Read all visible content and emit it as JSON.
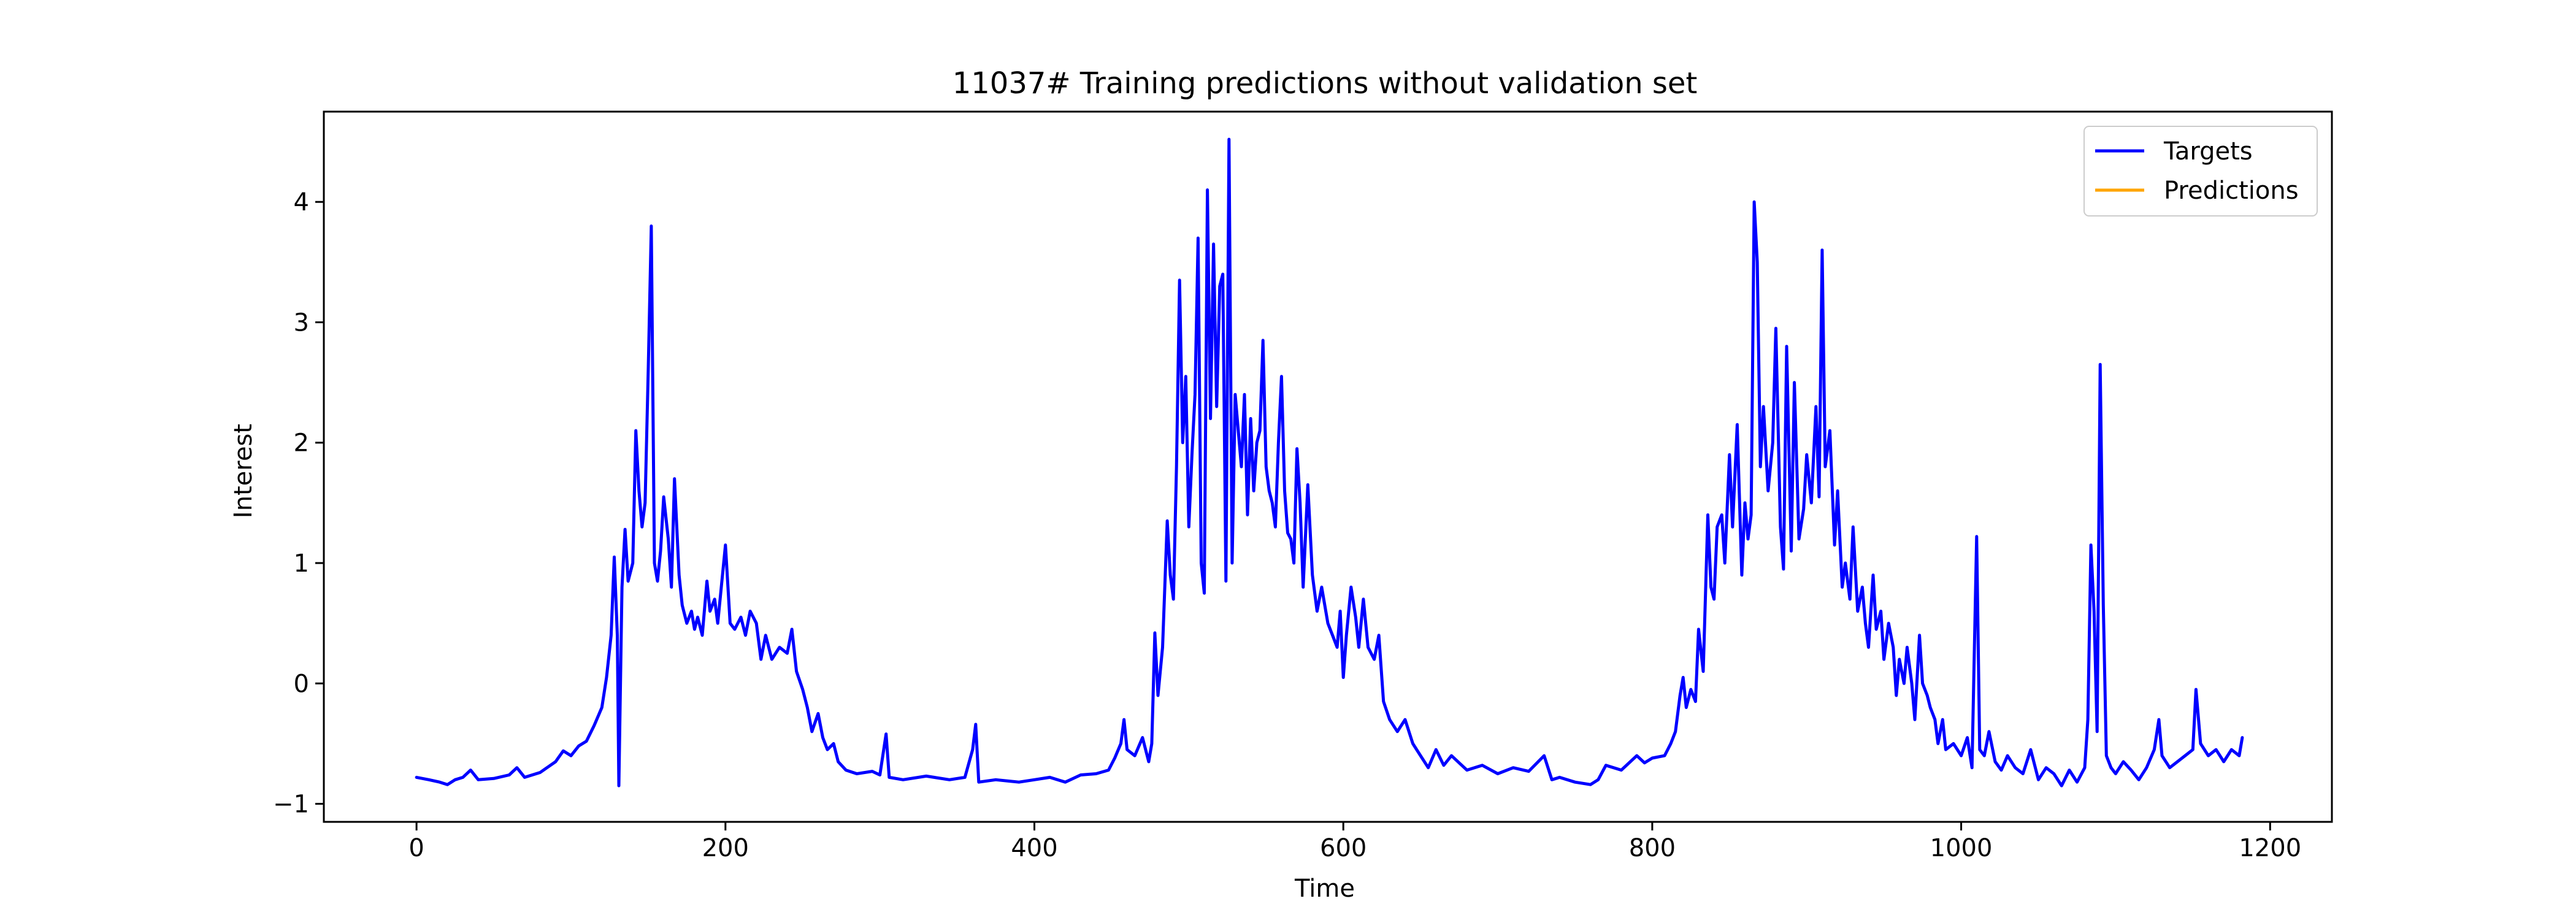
{
  "chart_data": {
    "type": "line",
    "title": "11037# Training predictions without validation set",
    "xlabel": "Time",
    "ylabel": "Interest",
    "xlim": [
      -60,
      1240
    ],
    "ylim": [
      -1.15,
      4.75
    ],
    "xticks": [
      0,
      200,
      400,
      600,
      800,
      1000,
      1200
    ],
    "yticks": [
      -1,
      0,
      1,
      2,
      3,
      4
    ],
    "grid": false,
    "legend_position": "top-right",
    "series": [
      {
        "name": "Targets",
        "color": "#0000ff",
        "points": [
          [
            0,
            -0.78
          ],
          [
            8,
            -0.8
          ],
          [
            15,
            -0.82
          ],
          [
            20,
            -0.84
          ],
          [
            25,
            -0.8
          ],
          [
            30,
            -0.78
          ],
          [
            35,
            -0.72
          ],
          [
            40,
            -0.8
          ],
          [
            50,
            -0.79
          ],
          [
            60,
            -0.76
          ],
          [
            65,
            -0.7
          ],
          [
            70,
            -0.78
          ],
          [
            80,
            -0.74
          ],
          [
            90,
            -0.65
          ],
          [
            95,
            -0.56
          ],
          [
            100,
            -0.6
          ],
          [
            105,
            -0.52
          ],
          [
            110,
            -0.48
          ],
          [
            115,
            -0.35
          ],
          [
            120,
            -0.2
          ],
          [
            123,
            0.05
          ],
          [
            126,
            0.4
          ],
          [
            128,
            1.05
          ],
          [
            130,
            0.4
          ],
          [
            131,
            -0.85
          ],
          [
            133,
            0.8
          ],
          [
            135,
            1.28
          ],
          [
            137,
            0.85
          ],
          [
            140,
            1.0
          ],
          [
            142,
            2.1
          ],
          [
            144,
            1.6
          ],
          [
            146,
            1.3
          ],
          [
            148,
            1.5
          ],
          [
            150,
            2.6
          ],
          [
            152,
            3.8
          ],
          [
            154,
            1.0
          ],
          [
            156,
            0.85
          ],
          [
            158,
            1.1
          ],
          [
            160,
            1.55
          ],
          [
            163,
            1.2
          ],
          [
            165,
            0.8
          ],
          [
            167,
            1.7
          ],
          [
            170,
            0.9
          ],
          [
            172,
            0.65
          ],
          [
            175,
            0.5
          ],
          [
            178,
            0.6
          ],
          [
            180,
            0.45
          ],
          [
            182,
            0.55
          ],
          [
            185,
            0.4
          ],
          [
            188,
            0.85
          ],
          [
            190,
            0.6
          ],
          [
            193,
            0.7
          ],
          [
            195,
            0.5
          ],
          [
            200,
            1.15
          ],
          [
            203,
            0.5
          ],
          [
            206,
            0.45
          ],
          [
            210,
            0.55
          ],
          [
            213,
            0.4
          ],
          [
            216,
            0.6
          ],
          [
            220,
            0.5
          ],
          [
            223,
            0.2
          ],
          [
            226,
            0.4
          ],
          [
            230,
            0.2
          ],
          [
            235,
            0.3
          ],
          [
            240,
            0.25
          ],
          [
            243,
            0.45
          ],
          [
            246,
            0.1
          ],
          [
            250,
            -0.05
          ],
          [
            253,
            -0.2
          ],
          [
            256,
            -0.4
          ],
          [
            260,
            -0.25
          ],
          [
            263,
            -0.45
          ],
          [
            266,
            -0.55
          ],
          [
            270,
            -0.5
          ],
          [
            273,
            -0.65
          ],
          [
            278,
            -0.72
          ],
          [
            285,
            -0.75
          ],
          [
            295,
            -0.73
          ],
          [
            300,
            -0.76
          ],
          [
            304,
            -0.42
          ],
          [
            306,
            -0.78
          ],
          [
            315,
            -0.8
          ],
          [
            330,
            -0.77
          ],
          [
            345,
            -0.8
          ],
          [
            355,
            -0.78
          ],
          [
            360,
            -0.55
          ],
          [
            362,
            -0.34
          ],
          [
            364,
            -0.82
          ],
          [
            375,
            -0.8
          ],
          [
            390,
            -0.82
          ],
          [
            400,
            -0.8
          ],
          [
            410,
            -0.78
          ],
          [
            420,
            -0.82
          ],
          [
            430,
            -0.76
          ],
          [
            440,
            -0.75
          ],
          [
            448,
            -0.72
          ],
          [
            452,
            -0.62
          ],
          [
            456,
            -0.5
          ],
          [
            458,
            -0.3
          ],
          [
            460,
            -0.55
          ],
          [
            465,
            -0.6
          ],
          [
            470,
            -0.45
          ],
          [
            474,
            -0.65
          ],
          [
            476,
            -0.5
          ],
          [
            478,
            0.42
          ],
          [
            480,
            -0.1
          ],
          [
            483,
            0.3
          ],
          [
            486,
            1.35
          ],
          [
            488,
            0.9
          ],
          [
            490,
            0.7
          ],
          [
            492,
            1.8
          ],
          [
            494,
            3.35
          ],
          [
            496,
            2.0
          ],
          [
            498,
            2.55
          ],
          [
            500,
            1.3
          ],
          [
            502,
            1.9
          ],
          [
            504,
            2.4
          ],
          [
            506,
            3.7
          ],
          [
            508,
            1.0
          ],
          [
            510,
            0.75
          ],
          [
            512,
            4.1
          ],
          [
            514,
            2.2
          ],
          [
            516,
            3.65
          ],
          [
            518,
            2.3
          ],
          [
            520,
            3.3
          ],
          [
            522,
            3.4
          ],
          [
            524,
            0.85
          ],
          [
            526,
            4.52
          ],
          [
            528,
            1.0
          ],
          [
            530,
            2.4
          ],
          [
            532,
            2.1
          ],
          [
            534,
            1.8
          ],
          [
            536,
            2.4
          ],
          [
            538,
            1.4
          ],
          [
            540,
            2.2
          ],
          [
            542,
            1.6
          ],
          [
            544,
            2.0
          ],
          [
            546,
            2.1
          ],
          [
            548,
            2.85
          ],
          [
            550,
            1.8
          ],
          [
            552,
            1.6
          ],
          [
            554,
            1.5
          ],
          [
            556,
            1.3
          ],
          [
            558,
            2.0
          ],
          [
            560,
            2.55
          ],
          [
            562,
            1.6
          ],
          [
            564,
            1.25
          ],
          [
            566,
            1.2
          ],
          [
            568,
            1.0
          ],
          [
            570,
            1.95
          ],
          [
            572,
            1.5
          ],
          [
            574,
            0.8
          ],
          [
            577,
            1.65
          ],
          [
            580,
            0.9
          ],
          [
            583,
            0.6
          ],
          [
            586,
            0.8
          ],
          [
            590,
            0.5
          ],
          [
            593,
            0.4
          ],
          [
            596,
            0.3
          ],
          [
            598,
            0.6
          ],
          [
            600,
            0.05
          ],
          [
            602,
            0.4
          ],
          [
            605,
            0.8
          ],
          [
            608,
            0.55
          ],
          [
            610,
            0.3
          ],
          [
            613,
            0.7
          ],
          [
            616,
            0.3
          ],
          [
            620,
            0.2
          ],
          [
            623,
            0.4
          ],
          [
            626,
            -0.15
          ],
          [
            630,
            -0.3
          ],
          [
            635,
            -0.4
          ],
          [
            640,
            -0.3
          ],
          [
            645,
            -0.5
          ],
          [
            650,
            -0.6
          ],
          [
            655,
            -0.7
          ],
          [
            660,
            -0.55
          ],
          [
            665,
            -0.68
          ],
          [
            670,
            -0.6
          ],
          [
            680,
            -0.72
          ],
          [
            690,
            -0.68
          ],
          [
            700,
            -0.75
          ],
          [
            710,
            -0.7
          ],
          [
            720,
            -0.73
          ],
          [
            730,
            -0.6
          ],
          [
            735,
            -0.8
          ],
          [
            740,
            -0.78
          ],
          [
            750,
            -0.82
          ],
          [
            760,
            -0.84
          ],
          [
            765,
            -0.8
          ],
          [
            770,
            -0.68
          ],
          [
            780,
            -0.72
          ],
          [
            790,
            -0.6
          ],
          [
            795,
            -0.66
          ],
          [
            800,
            -0.62
          ],
          [
            808,
            -0.6
          ],
          [
            812,
            -0.5
          ],
          [
            815,
            -0.4
          ],
          [
            818,
            -0.1
          ],
          [
            820,
            0.05
          ],
          [
            822,
            -0.2
          ],
          [
            825,
            -0.05
          ],
          [
            828,
            -0.15
          ],
          [
            830,
            0.45
          ],
          [
            833,
            0.1
          ],
          [
            836,
            1.4
          ],
          [
            838,
            0.8
          ],
          [
            840,
            0.7
          ],
          [
            842,
            1.3
          ],
          [
            845,
            1.4
          ],
          [
            847,
            1.0
          ],
          [
            850,
            1.9
          ],
          [
            852,
            1.3
          ],
          [
            855,
            2.15
          ],
          [
            858,
            0.9
          ],
          [
            860,
            1.5
          ],
          [
            862,
            1.2
          ],
          [
            864,
            1.4
          ],
          [
            866,
            4.0
          ],
          [
            868,
            3.5
          ],
          [
            870,
            1.8
          ],
          [
            872,
            2.3
          ],
          [
            875,
            1.6
          ],
          [
            878,
            2.0
          ],
          [
            880,
            2.95
          ],
          [
            883,
            1.3
          ],
          [
            885,
            0.95
          ],
          [
            887,
            2.8
          ],
          [
            890,
            1.1
          ],
          [
            892,
            2.5
          ],
          [
            895,
            1.2
          ],
          [
            898,
            1.45
          ],
          [
            900,
            1.9
          ],
          [
            903,
            1.5
          ],
          [
            906,
            2.3
          ],
          [
            908,
            1.55
          ],
          [
            910,
            3.6
          ],
          [
            912,
            1.8
          ],
          [
            915,
            2.1
          ],
          [
            918,
            1.15
          ],
          [
            920,
            1.6
          ],
          [
            923,
            0.8
          ],
          [
            925,
            1.0
          ],
          [
            928,
            0.7
          ],
          [
            930,
            1.3
          ],
          [
            933,
            0.6
          ],
          [
            936,
            0.8
          ],
          [
            938,
            0.5
          ],
          [
            940,
            0.3
          ],
          [
            943,
            0.9
          ],
          [
            945,
            0.45
          ],
          [
            948,
            0.6
          ],
          [
            950,
            0.2
          ],
          [
            953,
            0.5
          ],
          [
            956,
            0.3
          ],
          [
            958,
            -0.1
          ],
          [
            960,
            0.2
          ],
          [
            963,
            0.0
          ],
          [
            965,
            0.3
          ],
          [
            968,
            0.0
          ],
          [
            970,
            -0.3
          ],
          [
            973,
            0.4
          ],
          [
            975,
            0.0
          ],
          [
            978,
            -0.1
          ],
          [
            980,
            -0.2
          ],
          [
            983,
            -0.3
          ],
          [
            985,
            -0.5
          ],
          [
            988,
            -0.3
          ],
          [
            990,
            -0.55
          ],
          [
            995,
            -0.5
          ],
          [
            1000,
            -0.6
          ],
          [
            1004,
            -0.45
          ],
          [
            1007,
            -0.7
          ],
          [
            1010,
            1.22
          ],
          [
            1012,
            -0.55
          ],
          [
            1015,
            -0.6
          ],
          [
            1018,
            -0.4
          ],
          [
            1022,
            -0.65
          ],
          [
            1026,
            -0.72
          ],
          [
            1030,
            -0.6
          ],
          [
            1035,
            -0.7
          ],
          [
            1040,
            -0.75
          ],
          [
            1045,
            -0.55
          ],
          [
            1050,
            -0.8
          ],
          [
            1055,
            -0.7
          ],
          [
            1060,
            -0.75
          ],
          [
            1065,
            -0.85
          ],
          [
            1070,
            -0.72
          ],
          [
            1075,
            -0.82
          ],
          [
            1080,
            -0.7
          ],
          [
            1082,
            -0.3
          ],
          [
            1084,
            1.15
          ],
          [
            1086,
            0.6
          ],
          [
            1088,
            -0.4
          ],
          [
            1090,
            2.65
          ],
          [
            1092,
            0.65
          ],
          [
            1094,
            -0.6
          ],
          [
            1097,
            -0.7
          ],
          [
            1100,
            -0.75
          ],
          [
            1105,
            -0.65
          ],
          [
            1110,
            -0.72
          ],
          [
            1115,
            -0.8
          ],
          [
            1120,
            -0.7
          ],
          [
            1125,
            -0.55
          ],
          [
            1128,
            -0.3
          ],
          [
            1130,
            -0.6
          ],
          [
            1135,
            -0.7
          ],
          [
            1140,
            -0.65
          ],
          [
            1145,
            -0.6
          ],
          [
            1150,
            -0.55
          ],
          [
            1152,
            -0.05
          ],
          [
            1155,
            -0.5
          ],
          [
            1160,
            -0.6
          ],
          [
            1165,
            -0.55
          ],
          [
            1170,
            -0.65
          ],
          [
            1175,
            -0.55
          ],
          [
            1180,
            -0.6
          ],
          [
            1182,
            -0.45
          ]
        ]
      },
      {
        "name": "Predictions",
        "color": "#ffa500",
        "points": []
      }
    ]
  }
}
